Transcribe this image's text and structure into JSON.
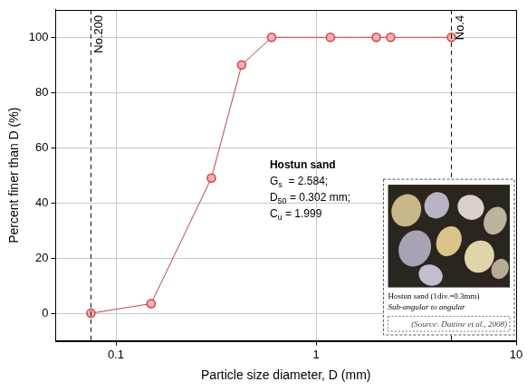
{
  "chart_data": {
    "type": "line",
    "x": [
      0.075,
      0.15,
      0.3,
      0.425,
      0.6,
      1.18,
      2.0,
      2.36,
      4.75
    ],
    "series": [
      {
        "color": "#e8393a",
        "marker": "circle",
        "line_style": "solid",
        "values": [
          0,
          3.5,
          49,
          90,
          100,
          100,
          100,
          100,
          100
        ]
      }
    ],
    "xlabel": "Particle size diameter, D (mm)",
    "ylabel": "Percent finer than D (%)",
    "log": "x",
    "xlim": [
      0.05,
      10
    ],
    "xticks": [
      0.1,
      1,
      10
    ],
    "ylim": [
      -10,
      110
    ],
    "yticks": [
      0,
      20,
      40,
      60,
      80,
      100
    ],
    "grid": true,
    "vlines": [
      {
        "x": 0.075,
        "label": "No.200",
        "line_style": "dashed"
      },
      {
        "x": 4.75,
        "label": "No.4",
        "line_style": "dashed"
      }
    ],
    "annotation": {
      "title": "Hostun sand",
      "lines": [
        [
          {
            "text": "G"
          },
          {
            "text": "s",
            "sub": true
          },
          {
            "text": "  = 2.584;"
          }
        ],
        [
          {
            "text": "D"
          },
          {
            "text": "50",
            "sub": true
          },
          {
            "text": " = 0.302 mm;"
          }
        ],
        [
          {
            "text": "C"
          },
          {
            "text": "u",
            "sub": true
          },
          {
            "text": " = 1.999"
          }
        ]
      ]
    },
    "inset": {
      "caption": "Hostun sand (1div.=0.3mm)",
      "description": "Sub-angular to angular",
      "source": "(Source: Duttine et al., 2008)"
    }
  }
}
